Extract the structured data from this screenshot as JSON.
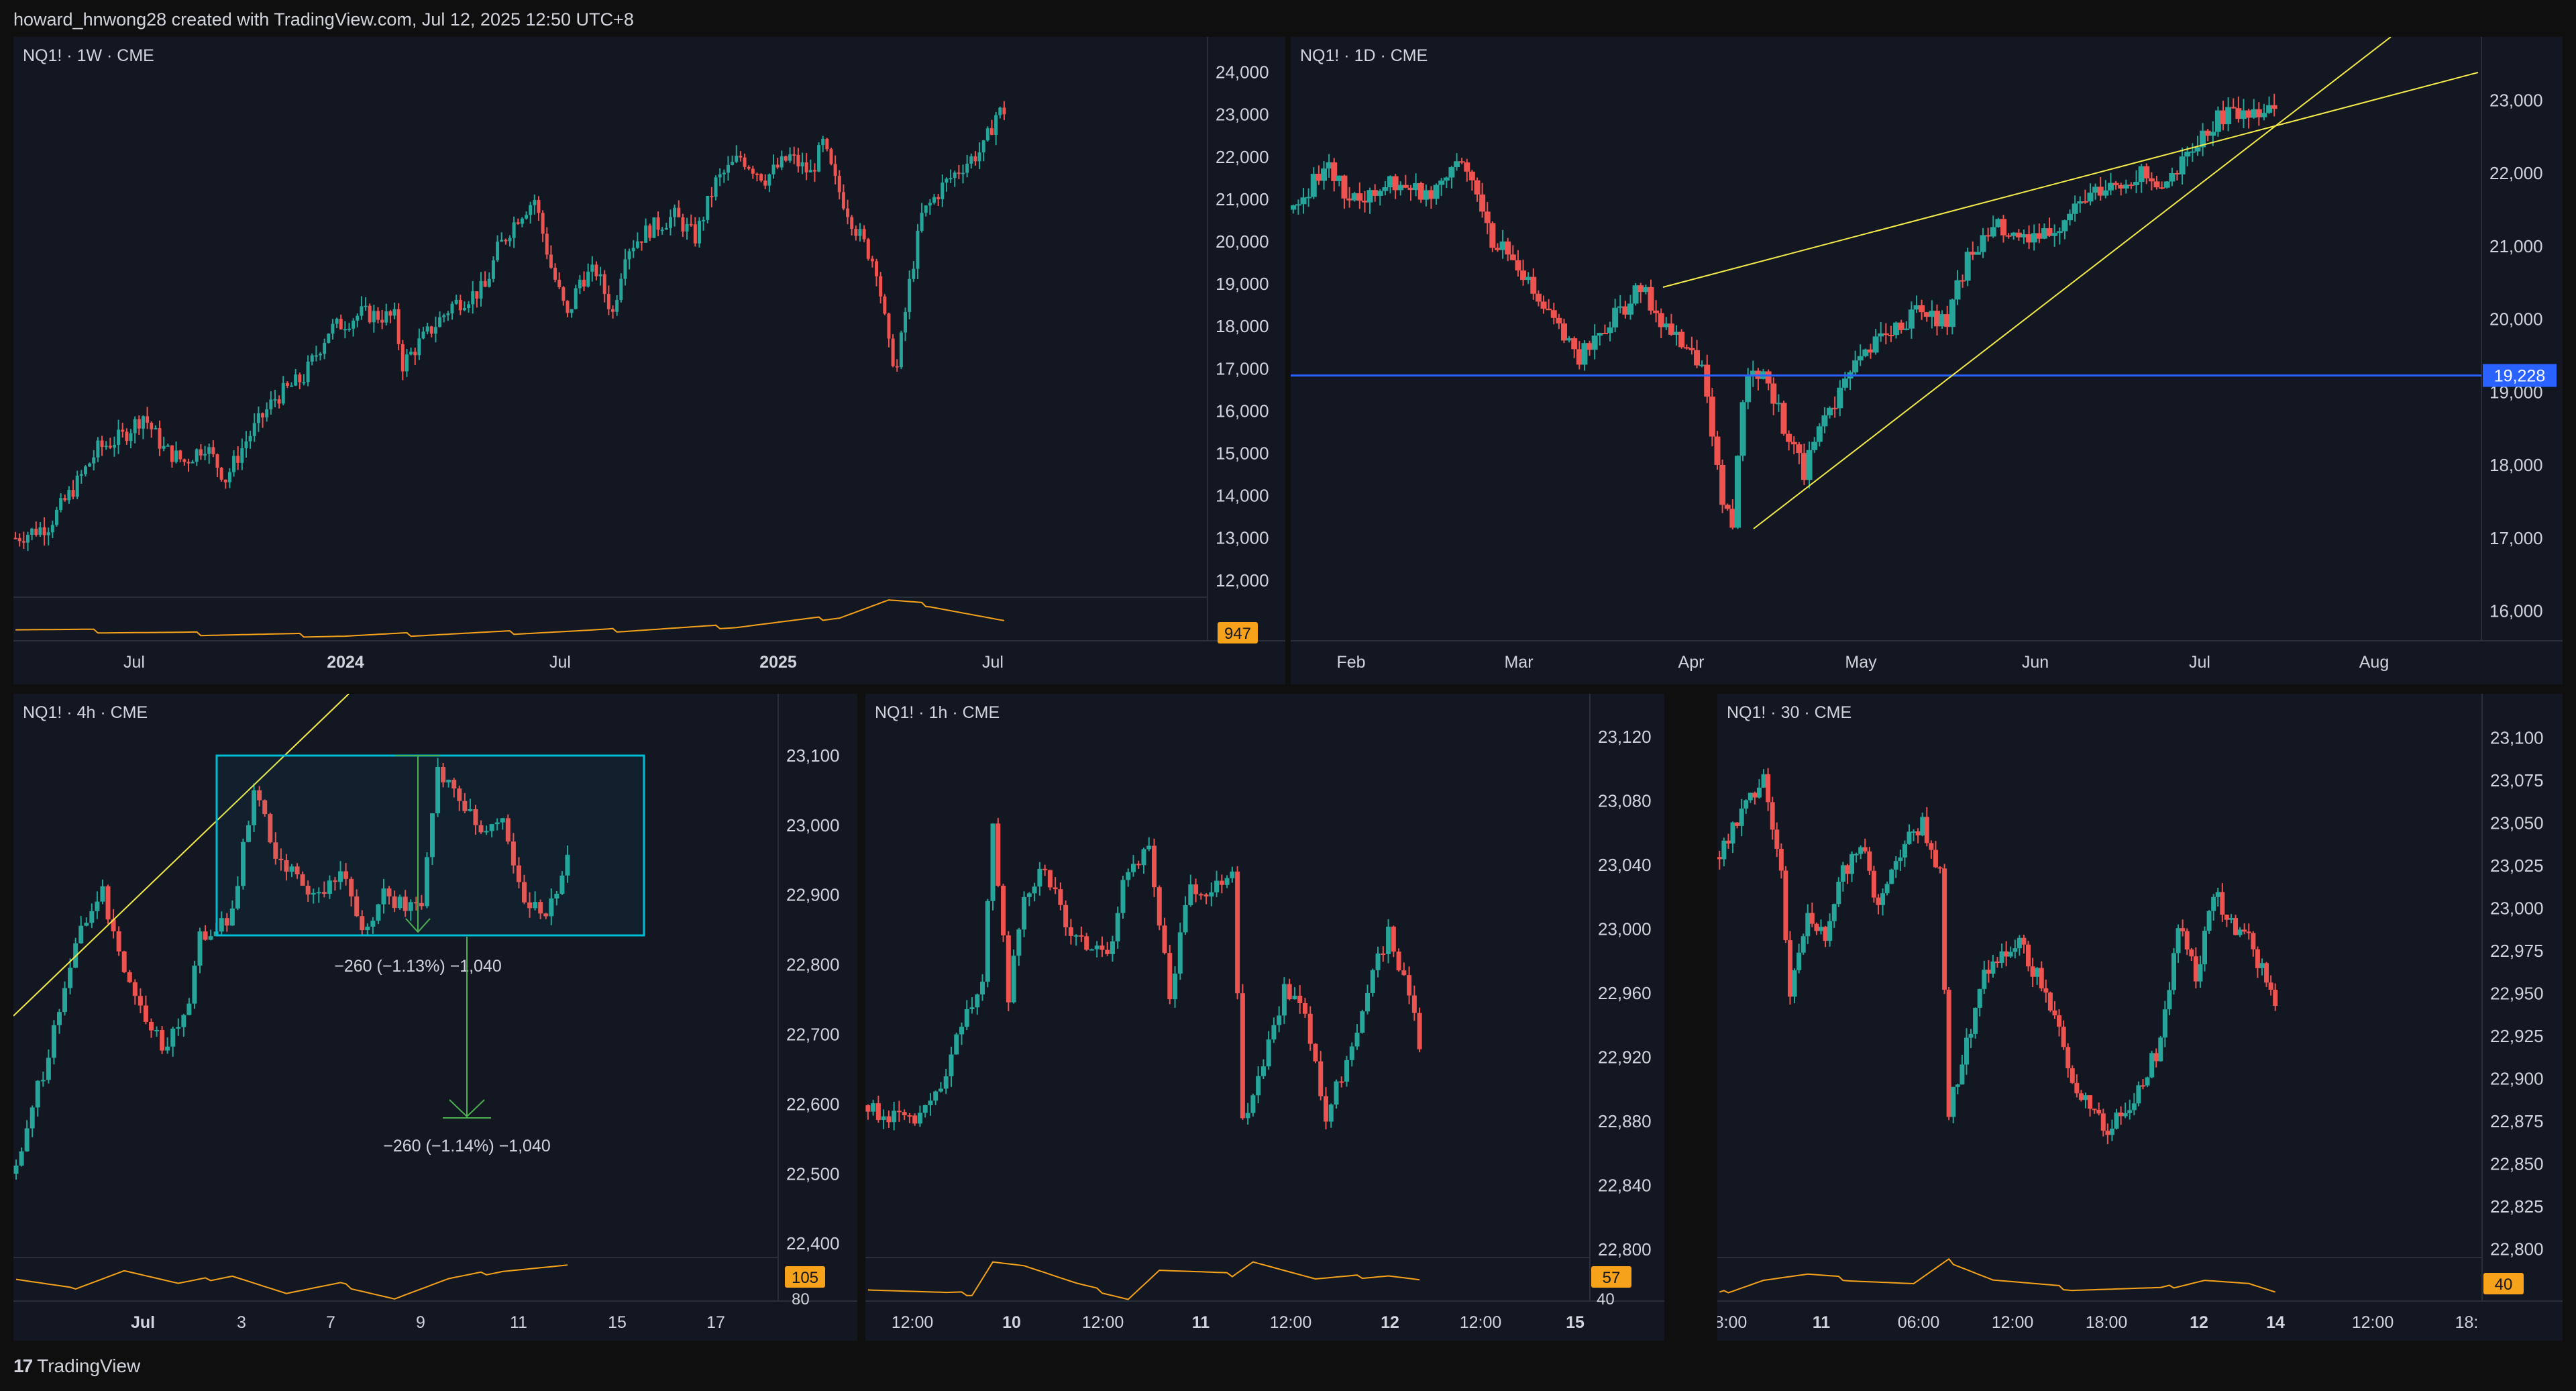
{
  "header": {
    "text": "howard_hnwong28 created with TradingView.com, Jul 12, 2025 12:50 UTC+8"
  },
  "footer": {
    "brand": "TradingView",
    "logo_icon": "tradingview-logo-icon"
  },
  "colors": {
    "up": "#26a69a",
    "down": "#ef5350",
    "indicator": "#f7a21b",
    "trendline": "#f5eb4a",
    "level": "#2962ff",
    "box": "#00bcd4",
    "measure": "#4caf50"
  },
  "chart_data": [
    {
      "id": "weekly",
      "title": "NQ1! · 1W · CME",
      "type": "candlestick",
      "y_ticks": [
        "24,000",
        "23,000",
        "22,000",
        "21,000",
        "20,000",
        "19,000",
        "18,000",
        "17,000",
        "16,000",
        "15,000",
        "14,000",
        "13,000",
        "12,000"
      ],
      "ylim": [
        11600,
        24200
      ],
      "x_ticks": [
        "Jul",
        "2024",
        "Jul",
        "2025",
        "Jul"
      ],
      "bold_x_ticks": [
        "2024",
        "2025"
      ],
      "indicator_label": "947",
      "path": [
        [
          0,
          13000
        ],
        [
          8,
          13300
        ],
        [
          15,
          14300
        ],
        [
          20,
          15100
        ],
        [
          26,
          15400
        ],
        [
          31,
          15900
        ],
        [
          36,
          15100
        ],
        [
          41,
          14800
        ],
        [
          46,
          15200
        ],
        [
          51,
          14400
        ],
        [
          56,
          15300
        ],
        [
          63,
          16300
        ],
        [
          70,
          16800
        ],
        [
          76,
          17900
        ],
        [
          84,
          18300
        ],
        [
          92,
          18200
        ],
        [
          94,
          17100
        ],
        [
          98,
          17600
        ],
        [
          106,
          18500
        ],
        [
          114,
          18900
        ],
        [
          117,
          19800
        ],
        [
          122,
          20600
        ],
        [
          126,
          21000
        ],
        [
          130,
          19400
        ],
        [
          134,
          18200
        ],
        [
          137,
          19100
        ],
        [
          141,
          19300
        ],
        [
          145,
          18300
        ],
        [
          148,
          19800
        ],
        [
          154,
          20300
        ],
        [
          160,
          20600
        ],
        [
          165,
          20100
        ],
        [
          170,
          21400
        ],
        [
          176,
          22000
        ],
        [
          182,
          21500
        ],
        [
          188,
          22000
        ],
        [
          193,
          21600
        ],
        [
          196,
          22300
        ],
        [
          199,
          21400
        ],
        [
          204,
          20300
        ],
        [
          209,
          19400
        ],
        [
          212,
          17500
        ],
        [
          214,
          17000
        ],
        [
          217,
          19000
        ],
        [
          220,
          20600
        ],
        [
          225,
          21300
        ],
        [
          230,
          21800
        ],
        [
          235,
          22200
        ],
        [
          238,
          23000
        ],
        [
          240,
          23100
        ]
      ],
      "ind": [
        [
          0,
          0.4
        ],
        [
          40,
          0.3
        ],
        [
          80,
          0.25
        ],
        [
          140,
          0.35
        ],
        [
          175,
          0.45
        ],
        [
          200,
          0.65
        ],
        [
          212,
          1.0
        ],
        [
          222,
          0.9
        ],
        [
          240,
          0.55
        ]
      ]
    },
    {
      "id": "daily",
      "title": "NQ1! · 1D · CME",
      "type": "candlestick",
      "y_ticks": [
        "23,000",
        "22,000",
        "21,000",
        "20,000",
        "19,000",
        "18,000",
        "17,000",
        "16,000"
      ],
      "ylim": [
        15500,
        23500
      ],
      "x_ticks": [
        "Feb",
        "Mar",
        "Apr",
        "May",
        "Jun",
        "Jul",
        "Aug"
      ],
      "level_label": "19,228",
      "level_value": 19228,
      "path": [
        [
          0,
          21500
        ],
        [
          6,
          22100
        ],
        [
          12,
          21600
        ],
        [
          20,
          21900
        ],
        [
          26,
          21700
        ],
        [
          32,
          22200
        ],
        [
          35,
          22000
        ],
        [
          38,
          21200
        ],
        [
          44,
          20700
        ],
        [
          48,
          20200
        ],
        [
          52,
          19900
        ],
        [
          56,
          19500
        ],
        [
          60,
          19800
        ],
        [
          64,
          20100
        ],
        [
          68,
          20400
        ],
        [
          72,
          20000
        ],
        [
          76,
          19600
        ],
        [
          80,
          19400
        ],
        [
          82,
          18300
        ],
        [
          84,
          17500
        ],
        [
          86,
          17200
        ],
        [
          88,
          19000
        ],
        [
          92,
          19400
        ],
        [
          96,
          18500
        ],
        [
          100,
          17900
        ],
        [
          104,
          18700
        ],
        [
          110,
          19300
        ],
        [
          116,
          19800
        ],
        [
          122,
          20100
        ],
        [
          128,
          20000
        ],
        [
          132,
          20800
        ],
        [
          138,
          21300
        ],
        [
          142,
          21000
        ],
        [
          146,
          21100
        ],
        [
          150,
          21300
        ],
        [
          154,
          21600
        ],
        [
          160,
          21800
        ],
        [
          166,
          22000
        ],
        [
          170,
          21700
        ],
        [
          174,
          22100
        ],
        [
          178,
          22500
        ],
        [
          182,
          22800
        ],
        [
          186,
          22900
        ],
        [
          190,
          22850
        ],
        [
          192,
          22900
        ]
      ],
      "ind": []
    },
    {
      "id": "h4",
      "title": "NQ1! · 4h · CME",
      "type": "candlestick",
      "y_ticks": [
        "23,100",
        "23,000",
        "22,900",
        "22,800",
        "22,700",
        "22,600",
        "22,500",
        "22,400"
      ],
      "ylim": [
        22380,
        23150
      ],
      "x_ticks": [
        "Jul",
        "3",
        "7",
        "9",
        "11",
        "15",
        "17"
      ],
      "bold_x_ticks": [
        "Jul"
      ],
      "indicator_label": "105",
      "indicator_axis": "80",
      "measure_label_1": "−260 (−1.13%) −1,040",
      "measure_label_2": "−260 (−1.14%) −1,040",
      "path": [
        [
          0,
          22500
        ],
        [
          4,
          22620
        ],
        [
          8,
          22730
        ],
        [
          12,
          22860
        ],
        [
          16,
          22900
        ],
        [
          20,
          22800
        ],
        [
          24,
          22720
        ],
        [
          28,
          22680
        ],
        [
          32,
          22750
        ],
        [
          34,
          22840
        ],
        [
          40,
          22870
        ],
        [
          44,
          23060
        ],
        [
          48,
          22950
        ],
        [
          52,
          22920
        ],
        [
          56,
          22900
        ],
        [
          60,
          22930
        ],
        [
          64,
          22850
        ],
        [
          68,
          22900
        ],
        [
          72,
          22880
        ],
        [
          75,
          22880
        ],
        [
          78,
          23080
        ],
        [
          82,
          23040
        ],
        [
          86,
          22990
        ],
        [
          90,
          23000
        ],
        [
          94,
          22900
        ],
        [
          98,
          22860
        ],
        [
          102,
          22950
        ]
      ],
      "ind": [
        [
          0,
          0.6
        ],
        [
          10,
          0.4
        ],
        [
          20,
          0.8
        ],
        [
          30,
          0.5
        ],
        [
          40,
          0.7
        ],
        [
          50,
          0.3
        ],
        [
          60,
          0.5
        ],
        [
          70,
          0.2
        ],
        [
          80,
          0.6
        ],
        [
          90,
          0.8
        ],
        [
          102,
          0.9
        ]
      ]
    },
    {
      "id": "h1",
      "title": "NQ1! · 1h · CME",
      "type": "candlestick",
      "y_ticks": [
        "23,120",
        "23,080",
        "23,040",
        "23,000",
        "22,960",
        "22,920",
        "22,880",
        "22,840",
        "22,800"
      ],
      "ylim": [
        22795,
        23130
      ],
      "x_ticks": [
        "12:00",
        "10",
        "12:00",
        "11",
        "12:00",
        "12",
        "12:00",
        "15"
      ],
      "bold_x_ticks": [
        "10",
        "11",
        "12",
        "15"
      ],
      "indicator_label": "57",
      "indicator_axis": "40",
      "path": [
        [
          0,
          22890
        ],
        [
          6,
          22880
        ],
        [
          10,
          22880
        ],
        [
          14,
          22900
        ],
        [
          18,
          22940
        ],
        [
          22,
          22970
        ],
        [
          24,
          23060
        ],
        [
          27,
          22960
        ],
        [
          30,
          23020
        ],
        [
          34,
          23040
        ],
        [
          38,
          23000
        ],
        [
          42,
          22990
        ],
        [
          46,
          22980
        ],
        [
          50,
          23040
        ],
        [
          54,
          23050
        ],
        [
          58,
          22960
        ],
        [
          62,
          23030
        ],
        [
          66,
          23020
        ],
        [
          70,
          23040
        ],
        [
          72,
          22880
        ],
        [
          76,
          22920
        ],
        [
          80,
          22960
        ],
        [
          84,
          22950
        ],
        [
          88,
          22880
        ],
        [
          92,
          22920
        ],
        [
          96,
          22960
        ],
        [
          100,
          23000
        ],
        [
          104,
          22960
        ],
        [
          106,
          22930
        ]
      ],
      "ind": [
        [
          0,
          0.4
        ],
        [
          15,
          0.3
        ],
        [
          20,
          0.3
        ],
        [
          24,
          1.0
        ],
        [
          30,
          0.9
        ],
        [
          40,
          0.5
        ],
        [
          50,
          0.2
        ],
        [
          56,
          0.8
        ],
        [
          70,
          0.7
        ],
        [
          74,
          1.0
        ],
        [
          86,
          0.6
        ],
        [
          100,
          0.7
        ],
        [
          106,
          0.6
        ]
      ]
    },
    {
      "id": "m30",
      "title": "NQ1! · 30 · CME",
      "type": "candlestick",
      "y_ticks": [
        "23,100",
        "23,075",
        "23,050",
        "23,025",
        "23,000",
        "22,975",
        "22,950",
        "22,925",
        "22,900",
        "22,875",
        "22,850",
        "22,825",
        "22,800"
      ],
      "ylim": [
        22795,
        23110
      ],
      "x_ticks": [
        "8:00",
        "11",
        "06:00",
        "12:00",
        "18:00",
        "12",
        "14",
        "12:00",
        "18:"
      ],
      "bold_x_ticks": [
        "11",
        "12",
        "14"
      ],
      "indicator_label": "40",
      "path": [
        [
          0,
          23030
        ],
        [
          6,
          23060
        ],
        [
          10,
          23080
        ],
        [
          14,
          23020
        ],
        [
          16,
          22950
        ],
        [
          20,
          23000
        ],
        [
          24,
          22980
        ],
        [
          28,
          23020
        ],
        [
          32,
          23040
        ],
        [
          36,
          23000
        ],
        [
          40,
          23030
        ],
        [
          46,
          23050
        ],
        [
          50,
          23020
        ],
        [
          52,
          22880
        ],
        [
          56,
          22920
        ],
        [
          60,
          22960
        ],
        [
          64,
          22970
        ],
        [
          68,
          22980
        ],
        [
          72,
          22960
        ],
        [
          76,
          22940
        ],
        [
          80,
          22900
        ],
        [
          84,
          22880
        ],
        [
          88,
          22870
        ],
        [
          92,
          22880
        ],
        [
          96,
          22900
        ],
        [
          100,
          22920
        ],
        [
          104,
          22990
        ],
        [
          108,
          22960
        ],
        [
          112,
          23010
        ],
        [
          116,
          22990
        ],
        [
          120,
          22980
        ],
        [
          124,
          22960
        ],
        [
          126,
          22940
        ]
      ],
      "ind": [
        [
          0,
          0.3
        ],
        [
          10,
          0.6
        ],
        [
          20,
          0.7
        ],
        [
          30,
          0.6
        ],
        [
          44,
          0.5
        ],
        [
          52,
          1.0
        ],
        [
          62,
          0.6
        ],
        [
          80,
          0.4
        ],
        [
          100,
          0.4
        ],
        [
          110,
          0.6
        ],
        [
          120,
          0.5
        ],
        [
          126,
          0.3
        ]
      ]
    }
  ]
}
